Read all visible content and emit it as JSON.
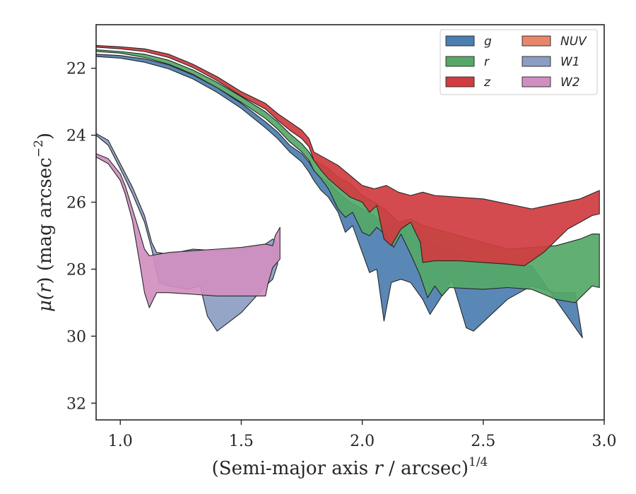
{
  "chart_data": {
    "type": "area",
    "xlabel": "(Semi-major axis r / arcsec)1/4",
    "xlabel_parts": {
      "pre": "(Semi-major axis ",
      "var": "r",
      "mid": " / arcsec)",
      "sup": "1/4"
    },
    "ylabel": "μ(r) (mag arcsec−2)",
    "ylabel_parts": {
      "mu": "μ(",
      "var": "r",
      "mid": ") (mag arcsec",
      "sup": "−2",
      "post": ")"
    },
    "xlim": [
      0.9,
      3.0
    ],
    "ylim": [
      32.5,
      20.7
    ],
    "y_inverted": true,
    "grid": false,
    "legend_position": "top-right",
    "legend_columns": 2,
    "xticks": [
      1.0,
      1.5,
      2.0,
      2.5,
      3.0
    ],
    "xtick_labels": [
      "1.0",
      "1.5",
      "2.0",
      "2.5",
      "3.0"
    ],
    "yticks": [
      22,
      24,
      26,
      28,
      30,
      32
    ],
    "ytick_labels": [
      "22",
      "24",
      "26",
      "28",
      "30",
      "32"
    ],
    "series": [
      {
        "name": "g",
        "color": "#4c7eb0",
        "upper": [
          [
            0.9,
            21.58
          ],
          [
            1.0,
            21.62
          ],
          [
            1.1,
            21.72
          ],
          [
            1.2,
            21.9
          ],
          [
            1.3,
            22.2
          ],
          [
            1.4,
            22.58
          ],
          [
            1.5,
            23.05
          ],
          [
            1.6,
            23.6
          ],
          [
            1.65,
            23.9
          ],
          [
            1.7,
            24.3
          ],
          [
            1.75,
            24.55
          ],
          [
            1.78,
            24.8
          ],
          [
            1.8,
            25.05
          ],
          [
            1.83,
            25.25
          ],
          [
            1.86,
            25.4
          ],
          [
            1.9,
            25.7
          ],
          [
            1.95,
            26.0
          ],
          [
            2.0,
            26.2
          ],
          [
            2.05,
            26.4
          ],
          [
            2.1,
            26.7
          ],
          [
            2.15,
            26.6
          ],
          [
            2.2,
            26.7
          ],
          [
            2.25,
            26.9
          ],
          [
            2.3,
            27.3
          ],
          [
            2.4,
            27.5
          ],
          [
            2.5,
            27.8
          ],
          [
            2.6,
            27.8
          ],
          [
            2.7,
            27.9
          ]
        ],
        "lower": [
          [
            0.9,
            21.65
          ],
          [
            1.0,
            21.7
          ],
          [
            1.1,
            21.82
          ],
          [
            1.2,
            22.02
          ],
          [
            1.3,
            22.32
          ],
          [
            1.4,
            22.72
          ],
          [
            1.5,
            23.2
          ],
          [
            1.6,
            23.78
          ],
          [
            1.65,
            24.1
          ],
          [
            1.7,
            24.5
          ],
          [
            1.75,
            24.8
          ],
          [
            1.78,
            25.1
          ],
          [
            1.8,
            25.35
          ],
          [
            1.83,
            25.65
          ],
          [
            1.86,
            25.85
          ],
          [
            1.9,
            26.3
          ],
          [
            1.93,
            26.9
          ],
          [
            1.96,
            26.7
          ],
          [
            2.0,
            27.5
          ],
          [
            2.03,
            28.1
          ],
          [
            2.06,
            28.0
          ],
          [
            2.09,
            29.55
          ],
          [
            2.12,
            28.4
          ],
          [
            2.16,
            28.3
          ],
          [
            2.2,
            28.4
          ],
          [
            2.25,
            28.9
          ],
          [
            2.28,
            29.35
          ],
          [
            2.32,
            28.9
          ],
          [
            2.37,
            28.3
          ],
          [
            2.43,
            29.75
          ],
          [
            2.46,
            29.85
          ],
          [
            2.6,
            28.9
          ],
          [
            2.7,
            28.5
          ],
          [
            2.8,
            28.7
          ],
          [
            2.88,
            28.7
          ],
          [
            2.91,
            30.05
          ]
        ]
      },
      {
        "name": "r",
        "color": "#55a868",
        "upper": [
          [
            0.9,
            21.45
          ],
          [
            1.0,
            21.5
          ],
          [
            1.1,
            21.58
          ],
          [
            1.2,
            21.76
          ],
          [
            1.3,
            22.05
          ],
          [
            1.4,
            22.42
          ],
          [
            1.5,
            22.85
          ],
          [
            1.6,
            23.3
          ],
          [
            1.65,
            23.6
          ],
          [
            1.7,
            23.95
          ],
          [
            1.75,
            24.25
          ],
          [
            1.78,
            24.5
          ],
          [
            1.8,
            24.75
          ],
          [
            1.85,
            24.95
          ],
          [
            1.9,
            25.25
          ],
          [
            1.95,
            25.45
          ],
          [
            2.0,
            25.8
          ],
          [
            2.05,
            26.0
          ],
          [
            2.1,
            26.25
          ],
          [
            2.15,
            26.6
          ],
          [
            2.2,
            26.5
          ],
          [
            2.25,
            26.7
          ],
          [
            2.4,
            27.0
          ],
          [
            2.6,
            27.4
          ],
          [
            2.8,
            27.3
          ],
          [
            2.9,
            27.1
          ],
          [
            2.95,
            26.95
          ],
          [
            2.98,
            26.95
          ]
        ],
        "lower": [
          [
            0.9,
            21.5
          ],
          [
            1.0,
            21.55
          ],
          [
            1.1,
            21.68
          ],
          [
            1.2,
            21.88
          ],
          [
            1.3,
            22.18
          ],
          [
            1.4,
            22.58
          ],
          [
            1.5,
            23.02
          ],
          [
            1.6,
            23.5
          ],
          [
            1.65,
            23.82
          ],
          [
            1.7,
            24.2
          ],
          [
            1.75,
            24.5
          ],
          [
            1.78,
            24.75
          ],
          [
            1.8,
            25.05
          ],
          [
            1.83,
            25.3
          ],
          [
            1.86,
            25.6
          ],
          [
            1.9,
            26.2
          ],
          [
            1.93,
            26.45
          ],
          [
            1.96,
            26.3
          ],
          [
            2.0,
            26.9
          ],
          [
            2.03,
            27.0
          ],
          [
            2.06,
            26.75
          ],
          [
            2.1,
            27.0
          ],
          [
            2.13,
            27.35
          ],
          [
            2.16,
            26.95
          ],
          [
            2.2,
            27.55
          ],
          [
            2.24,
            28.2
          ],
          [
            2.27,
            28.85
          ],
          [
            2.3,
            28.5
          ],
          [
            2.33,
            28.8
          ],
          [
            2.36,
            28.55
          ],
          [
            2.5,
            28.6
          ],
          [
            2.6,
            28.55
          ],
          [
            2.7,
            28.6
          ],
          [
            2.8,
            28.9
          ],
          [
            2.88,
            29.0
          ],
          [
            2.95,
            28.5
          ],
          [
            2.98,
            28.55
          ]
        ]
      },
      {
        "name": "z",
        "color": "#d03c40",
        "upper": [
          [
            0.9,
            21.32
          ],
          [
            1.0,
            21.36
          ],
          [
            1.1,
            21.42
          ],
          [
            1.2,
            21.58
          ],
          [
            1.3,
            21.88
          ],
          [
            1.4,
            22.25
          ],
          [
            1.5,
            22.7
          ],
          [
            1.6,
            23.05
          ],
          [
            1.65,
            23.35
          ],
          [
            1.7,
            23.6
          ],
          [
            1.75,
            23.85
          ],
          [
            1.78,
            24.1
          ],
          [
            1.8,
            24.5
          ],
          [
            1.85,
            24.7
          ],
          [
            1.9,
            24.9
          ],
          [
            1.95,
            25.2
          ],
          [
            2.0,
            25.5
          ],
          [
            2.05,
            25.6
          ],
          [
            2.1,
            25.5
          ],
          [
            2.15,
            25.7
          ],
          [
            2.2,
            25.8
          ],
          [
            2.25,
            25.7
          ],
          [
            2.3,
            25.8
          ],
          [
            2.5,
            25.9
          ],
          [
            2.7,
            26.2
          ],
          [
            2.9,
            25.9
          ],
          [
            2.98,
            25.65
          ]
        ],
        "lower": [
          [
            0.9,
            21.37
          ],
          [
            1.0,
            21.42
          ],
          [
            1.1,
            21.5
          ],
          [
            1.2,
            21.68
          ],
          [
            1.3,
            21.98
          ],
          [
            1.4,
            22.37
          ],
          [
            1.5,
            22.83
          ],
          [
            1.6,
            23.22
          ],
          [
            1.65,
            23.55
          ],
          [
            1.7,
            23.85
          ],
          [
            1.75,
            24.1
          ],
          [
            1.78,
            24.35
          ],
          [
            1.8,
            24.75
          ],
          [
            1.83,
            25.05
          ],
          [
            1.86,
            25.3
          ],
          [
            1.9,
            25.55
          ],
          [
            1.95,
            25.85
          ],
          [
            2.0,
            26.0
          ],
          [
            2.03,
            26.3
          ],
          [
            2.06,
            26.1
          ],
          [
            2.09,
            27.1
          ],
          [
            2.12,
            27.3
          ],
          [
            2.16,
            26.8
          ],
          [
            2.2,
            26.6
          ],
          [
            2.24,
            27.2
          ],
          [
            2.25,
            27.8
          ],
          [
            2.3,
            27.75
          ],
          [
            2.4,
            27.75
          ],
          [
            2.5,
            27.8
          ],
          [
            2.6,
            27.85
          ],
          [
            2.67,
            27.9
          ],
          [
            2.75,
            27.5
          ],
          [
            2.85,
            26.8
          ],
          [
            2.95,
            26.4
          ],
          [
            2.98,
            26.35
          ]
        ]
      },
      {
        "name": "NUV",
        "color": "#e8866b",
        "upper": [],
        "lower": []
      },
      {
        "name": "W1",
        "color": "#8c9dc3",
        "upper": [
          [
            0.9,
            23.95
          ],
          [
            0.95,
            24.15
          ],
          [
            1.0,
            24.85
          ],
          [
            1.05,
            25.55
          ],
          [
            1.1,
            26.4
          ],
          [
            1.13,
            27.2
          ],
          [
            1.15,
            27.5
          ],
          [
            1.2,
            27.55
          ],
          [
            1.3,
            27.4
          ],
          [
            1.4,
            27.45
          ],
          [
            1.5,
            27.4
          ],
          [
            1.6,
            27.25
          ],
          [
            1.63,
            27.1
          ],
          [
            1.65,
            27.2
          ]
        ],
        "lower": [
          [
            0.9,
            24.0
          ],
          [
            0.95,
            24.3
          ],
          [
            1.0,
            25.0
          ],
          [
            1.05,
            25.75
          ],
          [
            1.1,
            26.6
          ],
          [
            1.13,
            27.4
          ],
          [
            1.16,
            28.4
          ],
          [
            1.2,
            28.5
          ],
          [
            1.28,
            28.6
          ],
          [
            1.33,
            28.5
          ],
          [
            1.36,
            29.4
          ],
          [
            1.4,
            29.85
          ],
          [
            1.5,
            29.3
          ],
          [
            1.6,
            28.5
          ],
          [
            1.63,
            28.3
          ],
          [
            1.65,
            27.85
          ]
        ]
      },
      {
        "name": "W2",
        "color": "#d18fc0",
        "upper": [
          [
            0.9,
            24.55
          ],
          [
            0.95,
            24.7
          ],
          [
            1.0,
            25.15
          ],
          [
            1.02,
            25.5
          ],
          [
            1.05,
            26.2
          ],
          [
            1.08,
            26.9
          ],
          [
            1.1,
            27.4
          ],
          [
            1.12,
            27.6
          ],
          [
            1.2,
            27.5
          ],
          [
            1.3,
            27.45
          ],
          [
            1.4,
            27.4
          ],
          [
            1.5,
            27.35
          ],
          [
            1.6,
            27.25
          ],
          [
            1.63,
            27.3
          ],
          [
            1.64,
            27.0
          ],
          [
            1.66,
            26.75
          ]
        ],
        "lower": [
          [
            0.9,
            24.65
          ],
          [
            0.95,
            24.85
          ],
          [
            1.0,
            25.35
          ],
          [
            1.02,
            25.75
          ],
          [
            1.05,
            26.55
          ],
          [
            1.08,
            27.8
          ],
          [
            1.1,
            28.7
          ],
          [
            1.12,
            29.15
          ],
          [
            1.15,
            28.7
          ],
          [
            1.2,
            28.7
          ],
          [
            1.3,
            28.75
          ],
          [
            1.4,
            28.8
          ],
          [
            1.5,
            28.8
          ],
          [
            1.6,
            28.8
          ],
          [
            1.61,
            28.45
          ],
          [
            1.63,
            27.95
          ],
          [
            1.66,
            27.7
          ]
        ]
      }
    ]
  }
}
